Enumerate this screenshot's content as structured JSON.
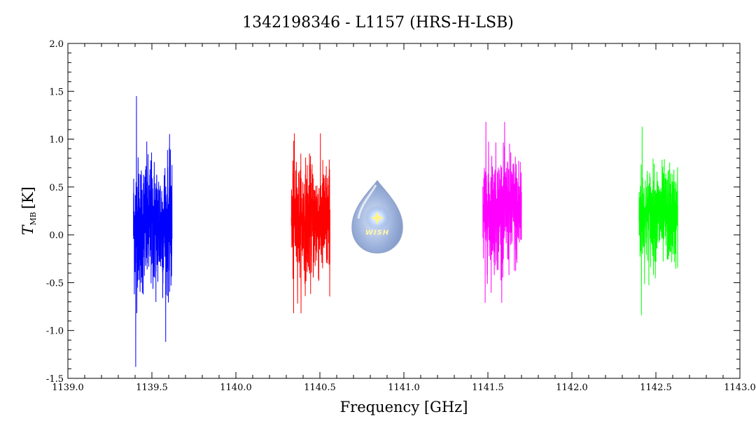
{
  "chart_data": {
    "type": "line",
    "title": "1342198346 - L1157 (HRS-H-LSB)",
    "xlabel": "Frequency [GHz]",
    "ylabel_main": "T",
    "ylabel_sub": "MB",
    "ylabel_unit": "[K]",
    "xlim": [
      1139.0,
      1143.0
    ],
    "ylim": [
      -1.5,
      2.0
    ],
    "xticks": [
      1139.0,
      1139.5,
      1140.0,
      1140.5,
      1141.0,
      1141.5,
      1142.0,
      1142.5,
      1143.0
    ],
    "xtick_labels": [
      "1139.0",
      "1139.5",
      "1140.0",
      "1140.5",
      "1141.0",
      "1141.5",
      "1142.0",
      "1142.5",
      "1143.0"
    ],
    "yticks": [
      -1.5,
      -1.0,
      -0.5,
      0.0,
      0.5,
      1.0,
      1.5,
      2.0
    ],
    "ytick_labels": [
      "-1.5",
      "-1.0",
      "-0.5",
      "0.0",
      "0.5",
      "1.0",
      "1.5",
      "2.0"
    ],
    "grid": false,
    "series": [
      {
        "color": "#0000ff",
        "x_range": [
          1139.39,
          1139.62
        ],
        "mean": 0.1,
        "noise": 0.35,
        "max": 1.45,
        "min": -1.38
      },
      {
        "color": "#ff0000",
        "x_range": [
          1140.33,
          1140.56
        ],
        "mean": 0.15,
        "noise": 0.3,
        "max": 1.06,
        "min": -0.82
      },
      {
        "color": "#ff00ff",
        "x_range": [
          1141.47,
          1141.7
        ],
        "mean": 0.25,
        "noise": 0.3,
        "max": 1.18,
        "min": -0.71
      },
      {
        "color": "#00ff00",
        "x_range": [
          1142.4,
          1142.63
        ],
        "mean": 0.2,
        "noise": 0.25,
        "max": 1.13,
        "min": -0.84
      }
    ]
  },
  "logo": {
    "text": "WISH"
  }
}
